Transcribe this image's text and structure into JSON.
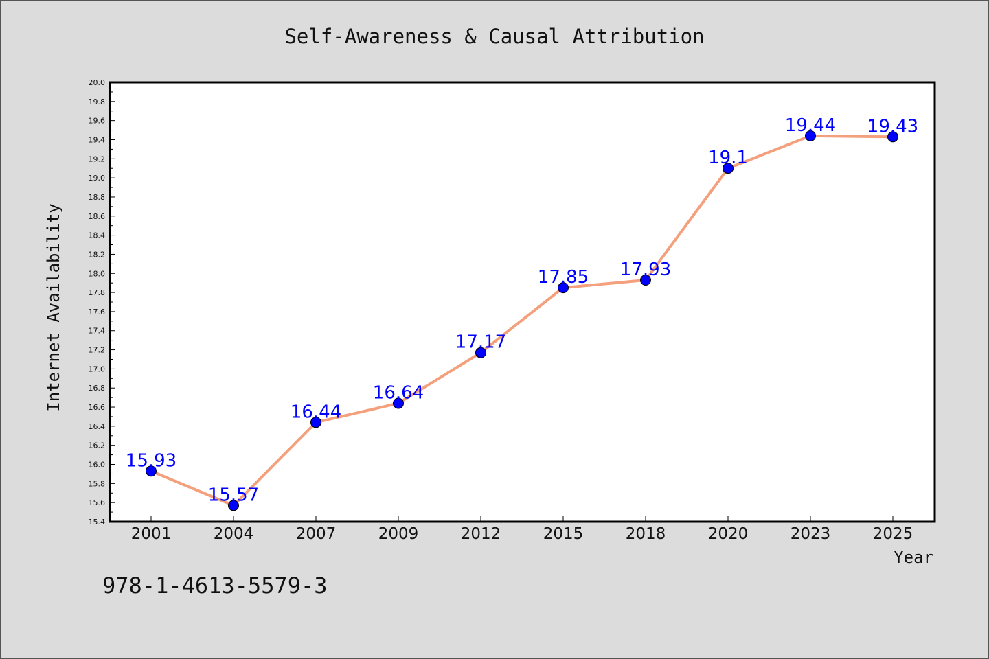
{
  "chart_data": {
    "type": "line",
    "title": "Self-Awareness & Causal Attribution",
    "xlabel": "Year",
    "ylabel": "Internet Availability",
    "categories": [
      "2001",
      "2004",
      "2007",
      "2009",
      "2012",
      "2015",
      "2018",
      "2020",
      "2023",
      "2025"
    ],
    "series": [
      {
        "values": [
          15.93,
          15.57,
          16.44,
          16.64,
          17.17,
          17.85,
          17.93,
          19.1,
          19.44,
          19.43
        ],
        "labels": [
          "15.93",
          "15.57",
          "16.44",
          "16.64",
          "17.17",
          "17.85",
          "17.93",
          "19.1",
          "19.44",
          "19.43"
        ],
        "line_color": "#f4a07c",
        "marker_color": "#0000ff"
      }
    ],
    "ylim": [
      15.4,
      20.0
    ],
    "yticks": [
      "15.4",
      "15.6",
      "15.8",
      "16.0",
      "16.2",
      "16.4",
      "16.6",
      "16.8",
      "17.0",
      "17.2",
      "17.4",
      "17.6",
      "17.8",
      "18.0",
      "18.2",
      "18.4",
      "18.6",
      "18.8",
      "19.0",
      "19.2",
      "19.4",
      "19.6",
      "19.8",
      "20.0"
    ],
    "grid": false,
    "legend": "none"
  },
  "annotation": {
    "text": "978-1-4613-5579-3"
  },
  "colors": {
    "background": "#dcdcdc",
    "plot_background": "#ffffff",
    "data_label": "#0000ff"
  }
}
